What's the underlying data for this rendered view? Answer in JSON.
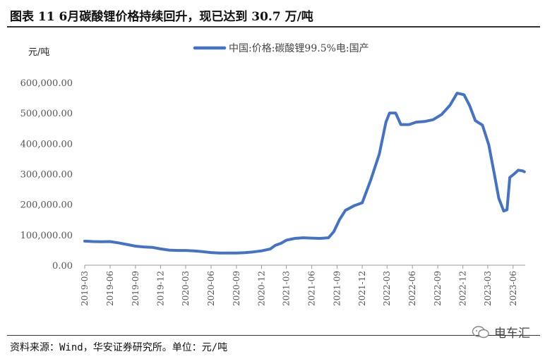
{
  "figure": {
    "title": "图表 11 6月碳酸锂价格持续回升，现已达到 30.7 万/吨",
    "source": "资料来源：Wind，华安证券研究所。单位：元/吨",
    "watermark": "电车汇"
  },
  "chart_data": {
    "type": "line",
    "title": "",
    "ylabel": "元/吨",
    "xlabel": "",
    "ylim": [
      0,
      600000
    ],
    "yticks": [
      0,
      100000,
      200000,
      300000,
      400000,
      500000,
      600000
    ],
    "ytick_labels": [
      "0.00",
      "100,000.00",
      "200,000.00",
      "300,000.00",
      "400,000.00",
      "500,000.00",
      "600,000.00"
    ],
    "xlim": [
      "2019-03-01",
      "2023-07-15"
    ],
    "xticks": [
      "2019-03",
      "2019-06",
      "2019-09",
      "2019-12",
      "2020-03",
      "2020-06",
      "2020-09",
      "2020-12",
      "2021-03",
      "2021-06",
      "2021-09",
      "2021-12",
      "2022-03",
      "2022-06",
      "2022-09",
      "2022-12",
      "2023-03",
      "2023-06"
    ],
    "legend_position": "top-center",
    "grid": false,
    "series": [
      {
        "name": "中国:价格:碳酸锂99.5%电:国产",
        "color": "#4472C4",
        "points": [
          [
            "2019-03-01",
            79000
          ],
          [
            "2019-04-01",
            77500
          ],
          [
            "2019-05-01",
            77000
          ],
          [
            "2019-06-01",
            77500
          ],
          [
            "2019-07-01",
            73500
          ],
          [
            "2019-08-01",
            68000
          ],
          [
            "2019-09-01",
            62500
          ],
          [
            "2019-10-01",
            60000
          ],
          [
            "2019-11-01",
            58500
          ],
          [
            "2019-12-01",
            53500
          ],
          [
            "2020-01-01",
            49500
          ],
          [
            "2020-02-01",
            48500
          ],
          [
            "2020-03-01",
            48500
          ],
          [
            "2020-04-01",
            47000
          ],
          [
            "2020-05-01",
            44500
          ],
          [
            "2020-06-01",
            41500
          ],
          [
            "2020-07-01",
            40000
          ],
          [
            "2020-08-01",
            40000
          ],
          [
            "2020-09-01",
            40000
          ],
          [
            "2020-10-01",
            41000
          ],
          [
            "2020-11-01",
            43500
          ],
          [
            "2020-12-01",
            47000
          ],
          [
            "2021-01-01",
            53000
          ],
          [
            "2021-01-20",
            65000
          ],
          [
            "2021-02-10",
            72000
          ],
          [
            "2021-03-01",
            82000
          ],
          [
            "2021-04-01",
            88000
          ],
          [
            "2021-05-01",
            90000
          ],
          [
            "2021-06-01",
            89000
          ],
          [
            "2021-07-01",
            88000
          ],
          [
            "2021-08-01",
            90000
          ],
          [
            "2021-08-20",
            110000
          ],
          [
            "2021-09-10",
            150000
          ],
          [
            "2021-10-01",
            180000
          ],
          [
            "2021-11-01",
            195000
          ],
          [
            "2021-12-01",
            205000
          ],
          [
            "2022-01-01",
            280000
          ],
          [
            "2022-02-01",
            365000
          ],
          [
            "2022-02-25",
            470000
          ],
          [
            "2022-03-10",
            500000
          ],
          [
            "2022-04-01",
            500000
          ],
          [
            "2022-04-20",
            462000
          ],
          [
            "2022-05-20",
            462000
          ],
          [
            "2022-06-15",
            470000
          ],
          [
            "2022-07-15",
            472000
          ],
          [
            "2022-08-15",
            478000
          ],
          [
            "2022-09-15",
            495000
          ],
          [
            "2022-10-15",
            525000
          ],
          [
            "2022-11-10",
            565000
          ],
          [
            "2022-12-05",
            560000
          ],
          [
            "2022-12-25",
            525000
          ],
          [
            "2023-01-15",
            475000
          ],
          [
            "2023-02-10",
            460000
          ],
          [
            "2023-03-05",
            395000
          ],
          [
            "2023-03-25",
            300000
          ],
          [
            "2023-04-10",
            220000
          ],
          [
            "2023-04-28",
            178000
          ],
          [
            "2023-05-10",
            182000
          ],
          [
            "2023-05-20",
            288000
          ],
          [
            "2023-06-05",
            300000
          ],
          [
            "2023-06-20",
            312000
          ],
          [
            "2023-07-05",
            310000
          ],
          [
            "2023-07-12",
            307000
          ]
        ]
      }
    ]
  }
}
